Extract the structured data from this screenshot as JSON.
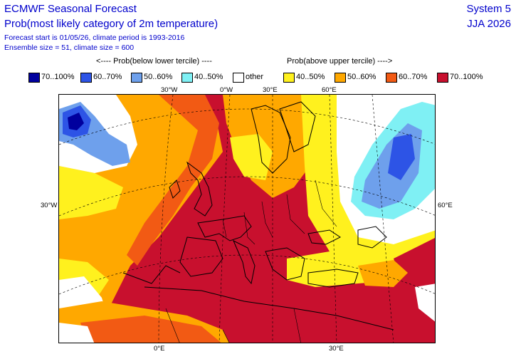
{
  "header": {
    "title": "ECMWF Seasonal Forecast",
    "subtitle": "Prob(most likely category of 2m temperature)",
    "info_line1": "Forecast start is 01/05/26, climate period is 1993-2016",
    "info_line2": "Ensemble size = 51, climate size = 600",
    "system": "System 5",
    "season": "JJA 2026"
  },
  "legend": {
    "left_arrow_label": "<---- Prob(below lower tercile) ----",
    "right_arrow_label": "Prob(above upper tercile) ---->",
    "items": [
      {
        "label": "70..100%",
        "color": "#00009e"
      },
      {
        "label": "60..70%",
        "color": "#2d54e6"
      },
      {
        "label": "50..60%",
        "color": "#6ea0ec"
      },
      {
        "label": "40..50%",
        "color": "#7ff0f4"
      },
      {
        "label": "other",
        "color": "#ffffff"
      },
      {
        "label": "40..50%",
        "color": "#fff11e"
      },
      {
        "label": "50..60%",
        "color": "#ffa800"
      },
      {
        "label": "60..70%",
        "color": "#f25a14"
      },
      {
        "label": "70..100%",
        "color": "#c8102e"
      }
    ]
  },
  "map": {
    "ticks": {
      "top_30w": "30°W",
      "top_0": "0°W",
      "top_30e": "30°E",
      "top_60e": "60°E",
      "left_30w": "30°W",
      "right_60e": "60°E",
      "bottom_0": "0°E",
      "bottom_30e": "30°E"
    }
  }
}
